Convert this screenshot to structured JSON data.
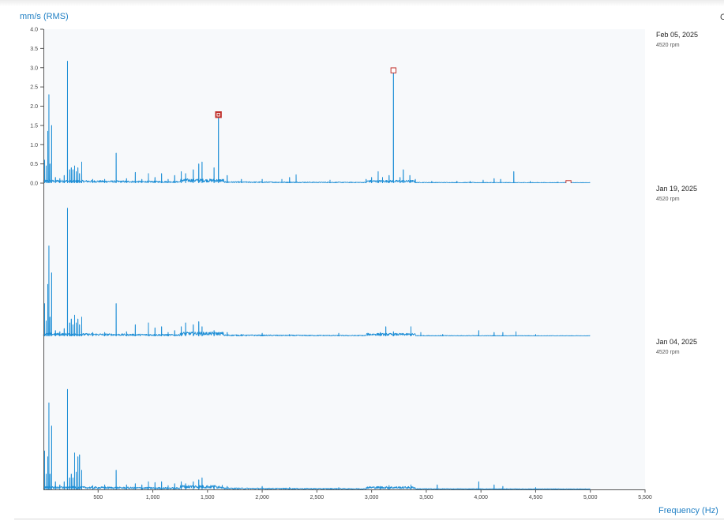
{
  "header": {
    "unit_label": "mm/s (RMS)",
    "edge_text": "C"
  },
  "footer": {
    "freq_label": "Frequency (Hz)"
  },
  "colors": {
    "line": "#1f8fd6",
    "background": "#f7f9fb",
    "axis": "#555555",
    "marker": "#c0302b",
    "accent_text": "#1f7fc4"
  },
  "chart_data": {
    "type": "line",
    "title": "",
    "xlabel": "Frequency (Hz)",
    "ylabel": "mm/s (RMS)",
    "xlim": [
      0,
      5500
    ],
    "ylim": [
      0,
      4.0
    ],
    "y_ticks": [
      "4.0",
      "3.5",
      "3.0",
      "2.5",
      "2.0",
      "1.5",
      "1.0",
      "0.5",
      "0.0"
    ],
    "x_ticks": [
      "500",
      "1,000",
      "1,500",
      "2,000",
      "2,500",
      "3,000",
      "3,500",
      "4,000",
      "4,500",
      "5,000",
      "5,500"
    ],
    "grid": false,
    "panels": [
      {
        "date": "Feb 05, 2025",
        "rpm": "4520 rpm",
        "peaks": [
          [
            10,
            0.6
          ],
          [
            25,
            0.45
          ],
          [
            40,
            1.35
          ],
          [
            50,
            2.3
          ],
          [
            60,
            0.5
          ],
          [
            75,
            1.5
          ],
          [
            110,
            0.15
          ],
          [
            150,
            0.12
          ],
          [
            190,
            0.2
          ],
          [
            220,
            3.17
          ],
          [
            240,
            0.35
          ],
          [
            255,
            0.4
          ],
          [
            270,
            0.35
          ],
          [
            285,
            0.45
          ],
          [
            300,
            0.3
          ],
          [
            315,
            0.4
          ],
          [
            330,
            0.25
          ],
          [
            350,
            0.55
          ],
          [
            450,
            0.1
          ],
          [
            560,
            0.1
          ],
          [
            665,
            0.78
          ],
          [
            760,
            0.12
          ],
          [
            840,
            0.28
          ],
          [
            900,
            0.1
          ],
          [
            960,
            0.25
          ],
          [
            1020,
            0.15
          ],
          [
            1080,
            0.25
          ],
          [
            1140,
            0.1
          ],
          [
            1200,
            0.2
          ],
          [
            1260,
            0.3
          ],
          [
            1300,
            0.25
          ],
          [
            1370,
            0.35
          ],
          [
            1420,
            0.5
          ],
          [
            1450,
            0.55
          ],
          [
            1560,
            0.4
          ],
          [
            1600,
            1.75
          ],
          [
            1680,
            0.2
          ],
          [
            1810,
            0.1
          ],
          [
            2000,
            0.1
          ],
          [
            2180,
            0.1
          ],
          [
            2250,
            0.15
          ],
          [
            2310,
            0.22
          ],
          [
            2620,
            0.08
          ],
          [
            2950,
            0.1
          ],
          [
            3000,
            0.15
          ],
          [
            3060,
            0.3
          ],
          [
            3100,
            0.15
          ],
          [
            3160,
            0.2
          ],
          [
            3200,
            2.93
          ],
          [
            3260,
            0.15
          ],
          [
            3290,
            0.35
          ],
          [
            3350,
            0.2
          ],
          [
            3400,
            0.1
          ],
          [
            3550,
            0.05
          ],
          [
            3780,
            0.05
          ],
          [
            3900,
            0.05
          ],
          [
            4020,
            0.08
          ],
          [
            4120,
            0.12
          ],
          [
            4180,
            0.1
          ],
          [
            4300,
            0.3
          ],
          [
            4450,
            0.05
          ],
          [
            4700,
            0.03
          ]
        ],
        "markers": [
          [
            1600,
            1.78,
            "filled"
          ],
          [
            3200,
            2.93,
            "open"
          ],
          [
            4800,
            0.0,
            "open"
          ]
        ]
      },
      {
        "date": "Jan 19, 2025",
        "rpm": "4520 rpm",
        "peaks": [
          [
            10,
            0.85
          ],
          [
            25,
            0.4
          ],
          [
            40,
            1.35
          ],
          [
            50,
            2.35
          ],
          [
            60,
            0.5
          ],
          [
            75,
            1.65
          ],
          [
            110,
            0.15
          ],
          [
            150,
            0.12
          ],
          [
            190,
            0.2
          ],
          [
            220,
            3.33
          ],
          [
            240,
            0.35
          ],
          [
            255,
            0.45
          ],
          [
            270,
            0.3
          ],
          [
            285,
            0.55
          ],
          [
            300,
            0.35
          ],
          [
            315,
            0.45
          ],
          [
            330,
            0.3
          ],
          [
            350,
            0.5
          ],
          [
            450,
            0.1
          ],
          [
            560,
            0.1
          ],
          [
            665,
            0.85
          ],
          [
            760,
            0.12
          ],
          [
            840,
            0.3
          ],
          [
            960,
            0.35
          ],
          [
            1020,
            0.22
          ],
          [
            1080,
            0.25
          ],
          [
            1140,
            0.1
          ],
          [
            1200,
            0.15
          ],
          [
            1260,
            0.25
          ],
          [
            1300,
            0.35
          ],
          [
            1370,
            0.3
          ],
          [
            1420,
            0.38
          ],
          [
            1450,
            0.25
          ],
          [
            1560,
            0.15
          ],
          [
            1680,
            0.1
          ],
          [
            1810,
            0.05
          ],
          [
            2000,
            0.08
          ],
          [
            2250,
            0.05
          ],
          [
            2700,
            0.08
          ],
          [
            3080,
            0.1
          ],
          [
            3130,
            0.25
          ],
          [
            3200,
            0.12
          ],
          [
            3360,
            0.25
          ],
          [
            3450,
            0.1
          ],
          [
            3650,
            0.05
          ],
          [
            3980,
            0.15
          ],
          [
            4120,
            0.1
          ],
          [
            4200,
            0.1
          ],
          [
            4320,
            0.12
          ],
          [
            4500,
            0.05
          ]
        ],
        "markers": []
      },
      {
        "date": "Jan 04, 2025",
        "rpm": "4520 rpm",
        "peaks": [
          [
            10,
            1.0
          ],
          [
            25,
            0.4
          ],
          [
            40,
            0.85
          ],
          [
            50,
            2.25
          ],
          [
            60,
            0.4
          ],
          [
            75,
            1.65
          ],
          [
            110,
            0.2
          ],
          [
            150,
            0.12
          ],
          [
            190,
            0.2
          ],
          [
            220,
            2.6
          ],
          [
            240,
            0.3
          ],
          [
            255,
            0.4
          ],
          [
            270,
            0.3
          ],
          [
            285,
            0.95
          ],
          [
            300,
            0.45
          ],
          [
            315,
            0.85
          ],
          [
            330,
            0.9
          ],
          [
            350,
            0.5
          ],
          [
            450,
            0.1
          ],
          [
            560,
            0.12
          ],
          [
            665,
            0.5
          ],
          [
            760,
            0.12
          ],
          [
            840,
            0.15
          ],
          [
            900,
            0.12
          ],
          [
            960,
            0.2
          ],
          [
            1020,
            0.18
          ],
          [
            1080,
            0.2
          ],
          [
            1140,
            0.1
          ],
          [
            1200,
            0.15
          ],
          [
            1260,
            0.2
          ],
          [
            1300,
            0.15
          ],
          [
            1370,
            0.2
          ],
          [
            1420,
            0.25
          ],
          [
            1450,
            0.3
          ],
          [
            1560,
            0.1
          ],
          [
            1680,
            0.08
          ],
          [
            2000,
            0.08
          ],
          [
            2250,
            0.05
          ],
          [
            2700,
            0.05
          ],
          [
            3080,
            0.08
          ],
          [
            3160,
            0.1
          ],
          [
            3360,
            0.12
          ],
          [
            3600,
            0.12
          ],
          [
            3980,
            0.2
          ],
          [
            4120,
            0.12
          ],
          [
            4200,
            0.08
          ],
          [
            4500,
            0.05
          ]
        ],
        "markers": []
      }
    ]
  }
}
